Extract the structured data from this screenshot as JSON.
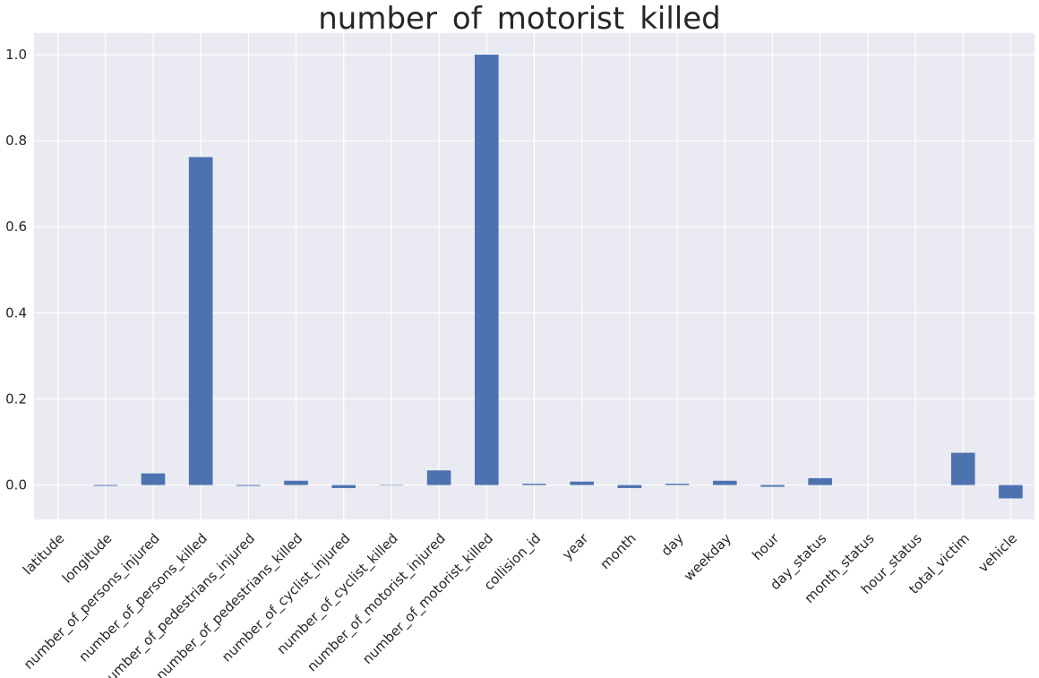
{
  "chart_data": {
    "type": "bar",
    "title": "number_of_motorist_killed",
    "xlabel": "",
    "ylabel": "",
    "categories": [
      "latitude",
      "longitude",
      "number_of_persons_injured",
      "number_of_persons_killed",
      "number_of_pedestrians_injured",
      "number_of_pedestrians_killed",
      "number_of_cyclist_injured",
      "number_of_cyclist_killed",
      "number_of_motorist_injured",
      "number_of_motorist_killed",
      "collision_id",
      "year",
      "month",
      "day",
      "weekday",
      "hour",
      "day_status",
      "month_status",
      "hour_status",
      "total_victim",
      "vehicle"
    ],
    "values": [
      0.0,
      -0.002,
      0.027,
      0.762,
      -0.002,
      0.01,
      -0.007,
      -0.001,
      0.034,
      1.0,
      0.003,
      0.008,
      -0.007,
      0.003,
      0.01,
      -0.004,
      0.016,
      0.0,
      0.0,
      0.075,
      -0.031
    ],
    "ylim": [
      -0.08,
      1.05
    ],
    "yticks": [
      0.0,
      0.2,
      0.4,
      0.6,
      0.8,
      1.0
    ],
    "ytick_labels": [
      "0.0",
      "0.2",
      "0.4",
      "0.6",
      "0.8",
      "1.0"
    ],
    "grid": true,
    "colors": {
      "bar": "#4c72b0",
      "background": "#eaeaf2",
      "grid": "#ffffff",
      "text": "#262626"
    }
  }
}
